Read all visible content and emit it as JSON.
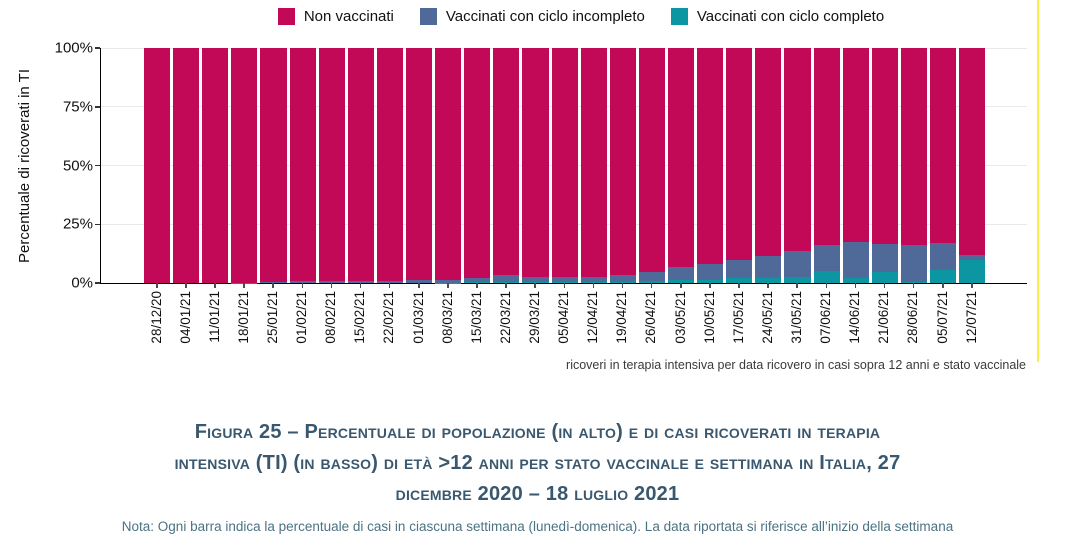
{
  "colors": {
    "non_vaccinati": "#C20958",
    "ciclo_incompleto": "#4F6999",
    "ciclo_completo": "#0B96A2",
    "caption_text": "#39586F",
    "note_text": "#4a7383",
    "yellow_edge_line": "#F8EF47",
    "gridline": "#e9e9e9"
  },
  "legend": {
    "items": [
      {
        "label": "Non vaccinati",
        "color": "#C20958"
      },
      {
        "label": "Vaccinati con ciclo incompleto",
        "color": "#4F6999"
      },
      {
        "label": "Vaccinati con ciclo completo",
        "color": "#0B96A2"
      }
    ]
  },
  "chart_data": {
    "type": "bar",
    "stacked": true,
    "percent_stacked": true,
    "grid": true,
    "legend_position": "top",
    "ylabel": "Percentuale di ricoverati in TI",
    "xlabel": "",
    "ylim": [
      0,
      100
    ],
    "yticks": [
      "0%",
      "25%",
      "50%",
      "75%",
      "100%"
    ],
    "categories": [
      "28/12/20",
      "04/01/21",
      "11/01/21",
      "18/01/21",
      "25/01/21",
      "01/02/21",
      "08/02/21",
      "15/02/21",
      "22/02/21",
      "01/03/21",
      "08/03/21",
      "15/03/21",
      "22/03/21",
      "29/03/21",
      "05/04/21",
      "12/04/21",
      "19/04/21",
      "26/04/21",
      "03/05/21",
      "10/05/21",
      "17/05/21",
      "24/05/21",
      "31/05/21",
      "07/06/21",
      "14/06/21",
      "21/06/21",
      "28/06/21",
      "05/07/21",
      "12/07/21"
    ],
    "series": [
      {
        "name": "Non vaccinati",
        "color": "#C20958",
        "values": [
          100,
          100,
          100,
          99.8,
          99.7,
          99.3,
          99,
          99,
          99,
          98.9,
          98.6,
          97.9,
          96.6,
          97.6,
          97.6,
          97.3,
          96.8,
          95.5,
          93.5,
          92.1,
          90.2,
          88.4,
          86.4,
          84,
          82.7,
          83.3,
          83.9,
          83.1,
          88.2
        ]
      },
      {
        "name": "Vaccinati con ciclo incompleto",
        "color": "#4F6999",
        "values": [
          0,
          0,
          0,
          0.2,
          0.3,
          0.7,
          1,
          1,
          1,
          1.1,
          1.2,
          1.8,
          3,
          2.1,
          2.1,
          2.3,
          2.6,
          3.6,
          5.5,
          6.7,
          7.8,
          9.3,
          10.9,
          10.8,
          15.3,
          11.9,
          15.8,
          11.4,
          1.8
        ]
      },
      {
        "name": "Vaccinati con ciclo completo",
        "color": "#0B96A2",
        "values": [
          0,
          0,
          0,
          0,
          0,
          0,
          0,
          0,
          0,
          0,
          0.2,
          0.3,
          0.4,
          0.3,
          0.3,
          0.4,
          0.6,
          0.9,
          1.2,
          1.2,
          2,
          2.3,
          2.7,
          5.2,
          2,
          4.8,
          0.3,
          5.5,
          10
        ]
      }
    ]
  },
  "footnote_right": "ricoveri in terapia intensiva per data ricovero in casi sopra 12 anni  e stato vaccinale",
  "caption": {
    "line1": "Figura 25 – Percentuale di popolazione (in alto) e di casi ricoverati in terapia",
    "line2": "intensiva (TI) (in basso) di età >12 anni per stato vaccinale e settimana in Italia, 27",
    "line3": "dicembre 2020 – 18 luglio 2021"
  },
  "note": "Nota: Ogni barra indica la percentuale di casi in ciascuna settimana (lunedì-domenica). La data riportata si riferisce all’inizio della settimana"
}
